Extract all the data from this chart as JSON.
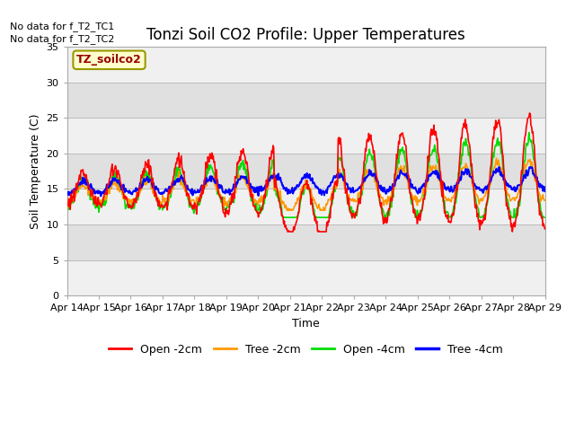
{
  "title": "Tonzi Soil CO2 Profile: Upper Temperatures",
  "ylabel": "Soil Temperature (C)",
  "xlabel": "Time",
  "no_data_text": [
    "No data for f_T2_TC1",
    "No data for f_T2_TC2"
  ],
  "legend_box_label": "TZ_soilco2",
  "legend_entries": [
    "Open -2cm",
    "Tree -2cm",
    "Open -4cm",
    "Tree -4cm"
  ],
  "line_colors": [
    "#ff0000",
    "#ff9900",
    "#00dd00",
    "#0000ff"
  ],
  "ylim": [
    0,
    35
  ],
  "yticks": [
    0,
    5,
    10,
    15,
    20,
    25,
    30,
    35
  ],
  "xtick_labels": [
    "Apr 14",
    "Apr 15",
    "Apr 16",
    "Apr 17",
    "Apr 18",
    "Apr 19",
    "Apr 20",
    "Apr 21",
    "Apr 22",
    "Apr 23",
    "Apr 24",
    "Apr 25",
    "Apr 26",
    "Apr 27",
    "Apr 28",
    "Apr 29"
  ],
  "bg_color": "#e0e0e0",
  "white_band_color": "#f0f0f0",
  "n_points": 720,
  "title_fontsize": 12,
  "axis_label_fontsize": 9,
  "tick_fontsize": 8,
  "figsize": [
    6.4,
    4.8
  ],
  "dpi": 100
}
